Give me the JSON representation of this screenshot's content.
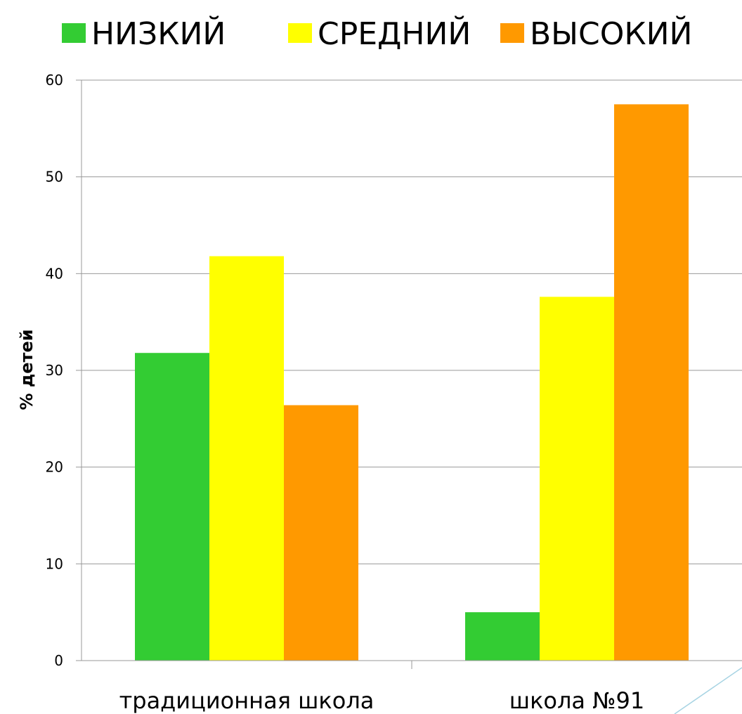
{
  "chart_data": {
    "type": "bar",
    "title": "",
    "xlabel": "",
    "ylabel": "% детей",
    "categories": [
      "традиционная школа",
      "школа №91"
    ],
    "series": [
      {
        "name": "НИЗКИЙ",
        "values": [
          31.8,
          5.0
        ],
        "color": "#33cc33"
      },
      {
        "name": "СРЕДНИЙ",
        "values": [
          41.8,
          37.6
        ],
        "color": "#ffff00"
      },
      {
        "name": "ВЫСОКИЙ",
        "values": [
          26.4,
          57.5
        ],
        "color": "#ff9900"
      }
    ],
    "ylim": [
      0,
      60
    ],
    "yticks": [
      0,
      10,
      20,
      30,
      40,
      50,
      60
    ],
    "grid": true,
    "legend_position": "top"
  },
  "style": {
    "grid_color": "#999999",
    "axis_color": "#999999",
    "accent_line_color": "#a6d3e3"
  }
}
